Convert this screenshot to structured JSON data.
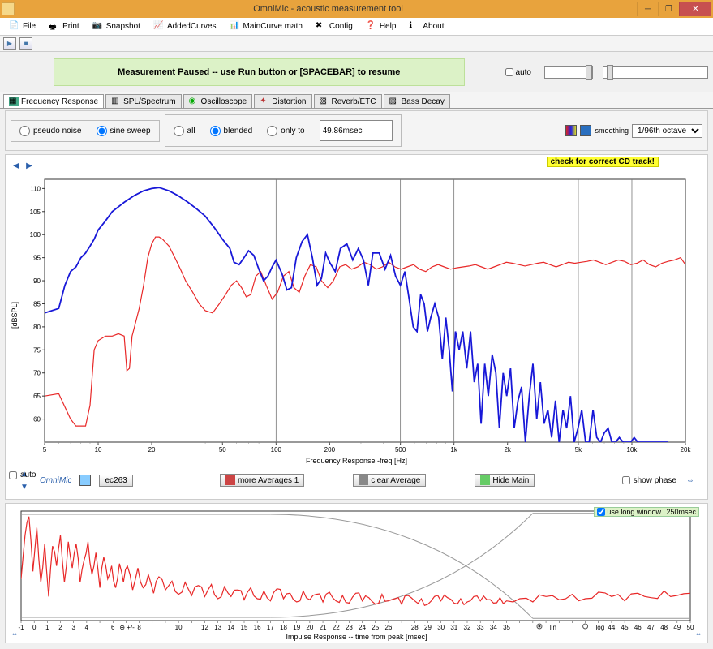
{
  "window": {
    "title": "OmniMic - acoustic measurement tool"
  },
  "menu": {
    "file": "File",
    "print": "Print",
    "snapshot": "Snapshot",
    "addedcurves": "AddedCurves",
    "maincurve": "MainCurve math",
    "config": "Config",
    "help": "Help",
    "about": "About"
  },
  "banner": "Measurement Paused -- use Run button or [SPACEBAR] to resume",
  "auto_label": "auto",
  "tabs": {
    "freq": "Frequency Response",
    "spl": "SPL/Spectrum",
    "osc": "Oscilloscope",
    "dist": "Distortion",
    "reverb": "Reverb/ETC",
    "bass": "Bass Decay"
  },
  "source": {
    "pseudo": "pseudo noise",
    "sweep": "sine sweep"
  },
  "blend": {
    "all": "all",
    "blended": "blended",
    "onlyto": "only to",
    "value": "49.86msec"
  },
  "smoothing_label": "smoothing",
  "smoothing_options": [
    "1/96th octave"
  ],
  "yellow_note": "check for correct CD track!",
  "freq_chart": {
    "ylabel": "[dBSPL]",
    "xlabel": "Frequency Response -freq [Hz]",
    "y_ticks": [
      60,
      65,
      70,
      75,
      80,
      85,
      90,
      95,
      100,
      105,
      110
    ],
    "x_ticks": [
      5,
      10,
      20,
      50,
      100,
      200,
      500,
      "1k",
      "2k",
      "5k",
      "10k",
      "20k"
    ],
    "x_log": [
      5,
      10,
      20,
      50,
      100,
      200,
      500,
      1000,
      2000,
      5000,
      10000,
      20000
    ],
    "grid_verticals": [
      100,
      500,
      1000,
      5000,
      10000
    ],
    "blue_color": "#1818d8",
    "red_color": "#e82828",
    "bg": "#ffffff",
    "grid_color": "#777777",
    "blue": [
      [
        5,
        83
      ],
      [
        6,
        84
      ],
      [
        6.5,
        89
      ],
      [
        7,
        92
      ],
      [
        7.5,
        93
      ],
      [
        8,
        95
      ],
      [
        8.5,
        96
      ],
      [
        9,
        97.5
      ],
      [
        9.5,
        99
      ],
      [
        10,
        101
      ],
      [
        11,
        103
      ],
      [
        12,
        105
      ],
      [
        14,
        107
      ],
      [
        16,
        108.5
      ],
      [
        18,
        109.5
      ],
      [
        20,
        110
      ],
      [
        22,
        110.2
      ],
      [
        25,
        109.5
      ],
      [
        28,
        108.5
      ],
      [
        32,
        107
      ],
      [
        36,
        105.5
      ],
      [
        40,
        104
      ],
      [
        45,
        101.5
      ],
      [
        50,
        99
      ],
      [
        55,
        97
      ],
      [
        58,
        94
      ],
      [
        62,
        93.5
      ],
      [
        66,
        95
      ],
      [
        70,
        96.5
      ],
      [
        75,
        95.5
      ],
      [
        80,
        92.5
      ],
      [
        85,
        90
      ],
      [
        90,
        91
      ],
      [
        95,
        93
      ],
      [
        100,
        94.5
      ],
      [
        108,
        91.5
      ],
      [
        115,
        88
      ],
      [
        122,
        88.5
      ],
      [
        130,
        95
      ],
      [
        140,
        98.5
      ],
      [
        150,
        100
      ],
      [
        160,
        95
      ],
      [
        170,
        89
      ],
      [
        180,
        90.5
      ],
      [
        190,
        96
      ],
      [
        200,
        94
      ],
      [
        215,
        92
      ],
      [
        230,
        97
      ],
      [
        250,
        98
      ],
      [
        270,
        94.5
      ],
      [
        290,
        97
      ],
      [
        310,
        94.5
      ],
      [
        330,
        89
      ],
      [
        350,
        96
      ],
      [
        380,
        96
      ],
      [
        410,
        92.5
      ],
      [
        440,
        95.5
      ],
      [
        470,
        91
      ],
      [
        500,
        89
      ],
      [
        530,
        92
      ],
      [
        560,
        86
      ],
      [
        590,
        80
      ],
      [
        620,
        79
      ],
      [
        650,
        87
      ],
      [
        680,
        85
      ],
      [
        710,
        79
      ],
      [
        740,
        82
      ],
      [
        780,
        85
      ],
      [
        820,
        82
      ],
      [
        860,
        73
      ],
      [
        900,
        82
      ],
      [
        940,
        75
      ],
      [
        980,
        66
      ],
      [
        1020,
        79
      ],
      [
        1070,
        75
      ],
      [
        1120,
        79
      ],
      [
        1180,
        71
      ],
      [
        1240,
        79
      ],
      [
        1300,
        68
      ],
      [
        1360,
        72
      ],
      [
        1420,
        59
      ],
      [
        1490,
        72
      ],
      [
        1560,
        65
      ],
      [
        1640,
        74
      ],
      [
        1720,
        70
      ],
      [
        1800,
        58
      ],
      [
        1890,
        70
      ],
      [
        1980,
        65
      ],
      [
        2080,
        71
      ],
      [
        2180,
        58
      ],
      [
        2290,
        64
      ],
      [
        2400,
        67
      ],
      [
        2520,
        55
      ],
      [
        2650,
        65
      ],
      [
        2780,
        72
      ],
      [
        2920,
        60
      ],
      [
        3060,
        68
      ],
      [
        3210,
        59
      ],
      [
        3370,
        62
      ],
      [
        3540,
        56
      ],
      [
        3720,
        64
      ],
      [
        3900,
        55
      ],
      [
        4100,
        62
      ],
      [
        4300,
        58
      ],
      [
        4520,
        65
      ],
      [
        4740,
        55
      ],
      [
        4980,
        58
      ],
      [
        5230,
        62
      ],
      [
        5490,
        55
      ],
      [
        5760,
        55
      ],
      [
        6050,
        62
      ],
      [
        6350,
        56
      ],
      [
        6670,
        55
      ],
      [
        7000,
        57
      ],
      [
        7350,
        58
      ],
      [
        7720,
        55
      ],
      [
        8100,
        55
      ],
      [
        8500,
        56
      ],
      [
        8930,
        55
      ],
      [
        9380,
        55
      ],
      [
        9850,
        55
      ],
      [
        10300,
        56
      ],
      [
        10800,
        55
      ],
      [
        11400,
        55
      ],
      [
        12000,
        55
      ],
      [
        12600,
        55
      ],
      [
        13200,
        55
      ],
      [
        13900,
        55
      ],
      [
        14600,
        55
      ],
      [
        15300,
        55
      ],
      [
        16000,
        55
      ]
    ],
    "red": [
      [
        5,
        65
      ],
      [
        6,
        65.5
      ],
      [
        7,
        60
      ],
      [
        7.5,
        58.5
      ],
      [
        8,
        58.5
      ],
      [
        8.5,
        58.5
      ],
      [
        9,
        63
      ],
      [
        9.5,
        75
      ],
      [
        10,
        77
      ],
      [
        11,
        78
      ],
      [
        12,
        78
      ],
      [
        13,
        78.5
      ],
      [
        14,
        78
      ],
      [
        14.5,
        70.5
      ],
      [
        15,
        71
      ],
      [
        15.5,
        78
      ],
      [
        16,
        80
      ],
      [
        17,
        84
      ],
      [
        18,
        89
      ],
      [
        19,
        95
      ],
      [
        20,
        98
      ],
      [
        21,
        99.5
      ],
      [
        22,
        99.5
      ],
      [
        23,
        99
      ],
      [
        25,
        97.5
      ],
      [
        27,
        95
      ],
      [
        29,
        92.5
      ],
      [
        31,
        90
      ],
      [
        34,
        87.5
      ],
      [
        37,
        85
      ],
      [
        40,
        83.5
      ],
      [
        44,
        83
      ],
      [
        48,
        85
      ],
      [
        52,
        87
      ],
      [
        56,
        89
      ],
      [
        60,
        90
      ],
      [
        64,
        88.5
      ],
      [
        68,
        86.5
      ],
      [
        72,
        87
      ],
      [
        77,
        91
      ],
      [
        82,
        92
      ],
      [
        88,
        89
      ],
      [
        95,
        86
      ],
      [
        102,
        87.5
      ],
      [
        110,
        91
      ],
      [
        118,
        92
      ],
      [
        126,
        88.5
      ],
      [
        135,
        87.5
      ],
      [
        145,
        91
      ],
      [
        156,
        93.5
      ],
      [
        168,
        93
      ],
      [
        180,
        90
      ],
      [
        195,
        88.5
      ],
      [
        210,
        90
      ],
      [
        228,
        93
      ],
      [
        246,
        93.5
      ],
      [
        266,
        92.5
      ],
      [
        288,
        93
      ],
      [
        312,
        94
      ],
      [
        338,
        93.5
      ],
      [
        366,
        92.5
      ],
      [
        396,
        93
      ],
      [
        430,
        94
      ],
      [
        466,
        93
      ],
      [
        504,
        92.5
      ],
      [
        546,
        93
      ],
      [
        592,
        93.5
      ],
      [
        640,
        92.5
      ],
      [
        694,
        92
      ],
      [
        752,
        93
      ],
      [
        814,
        93.5
      ],
      [
        882,
        93
      ],
      [
        956,
        92.5
      ],
      [
        1036,
        92.8
      ],
      [
        1122,
        93
      ],
      [
        1216,
        93.2
      ],
      [
        1318,
        93.5
      ],
      [
        1428,
        93
      ],
      [
        1548,
        92.5
      ],
      [
        1678,
        93
      ],
      [
        1818,
        93.5
      ],
      [
        1970,
        94
      ],
      [
        2136,
        93.8
      ],
      [
        2314,
        93.5
      ],
      [
        2508,
        93.2
      ],
      [
        2718,
        93.5
      ],
      [
        2946,
        93.8
      ],
      [
        3192,
        94
      ],
      [
        3460,
        93.5
      ],
      [
        3750,
        93
      ],
      [
        4064,
        93.5
      ],
      [
        4404,
        94
      ],
      [
        4774,
        93.8
      ],
      [
        5174,
        94
      ],
      [
        5608,
        94.2
      ],
      [
        6078,
        94.5
      ],
      [
        6588,
        94
      ],
      [
        7140,
        93.5
      ],
      [
        7738,
        94
      ],
      [
        8388,
        94.5
      ],
      [
        9090,
        94.2
      ],
      [
        9852,
        93.5
      ],
      [
        10680,
        93.8
      ],
      [
        11574,
        94.5
      ],
      [
        12546,
        93.5
      ],
      [
        13598,
        93
      ],
      [
        14740,
        93.8
      ],
      [
        15978,
        94.2
      ],
      [
        17318,
        94.5
      ],
      [
        18772,
        95
      ],
      [
        20000,
        93.5
      ]
    ]
  },
  "bottom_controls": {
    "auto": "auto",
    "omnimic": "OmniMic",
    "eq": "ec263",
    "more_avg": "more Averages 1",
    "clear_avg": "clear Average",
    "hide_main": "Hide Main",
    "show_phase": "show phase"
  },
  "impulse": {
    "xlabel": "Impulse Response -- time from peak [msec]",
    "use_long": "use long window",
    "use_long_val": "250msec",
    "x_ticks": [
      -1,
      0,
      1,
      2,
      3,
      4,
      "",
      6,
      "",
      8,
      "",
      "",
      10,
      "",
      12,
      13,
      14,
      15,
      16,
      17,
      18,
      19,
      20,
      21,
      22,
      23,
      24,
      25,
      26,
      "",
      28,
      29,
      30,
      31,
      32,
      33,
      34,
      35,
      "",
      "",
      "",
      "",
      "",
      "",
      "",
      44,
      45,
      46,
      47,
      48,
      49,
      50
    ],
    "color": "#e82828",
    "env_color": "#999999",
    "lin": "lin",
    "log": "log",
    "data": [
      [
        -1,
        0.38
      ],
      [
        -0.7,
        0.78
      ],
      [
        -0.4,
        0.95
      ],
      [
        -0.1,
        0.45
      ],
      [
        0.2,
        0.85
      ],
      [
        0.5,
        0.35
      ],
      [
        0.8,
        0.7
      ],
      [
        1.1,
        0.22
      ],
      [
        1.4,
        0.68
      ],
      [
        1.7,
        0.5
      ],
      [
        2.0,
        0.78
      ],
      [
        2.3,
        0.35
      ],
      [
        2.6,
        0.72
      ],
      [
        2.9,
        0.48
      ],
      [
        3.2,
        0.7
      ],
      [
        3.5,
        0.35
      ],
      [
        3.8,
        0.55
      ],
      [
        4.1,
        0.72
      ],
      [
        4.4,
        0.42
      ],
      [
        4.7,
        0.62
      ],
      [
        5.0,
        0.3
      ],
      [
        5.3,
        0.58
      ],
      [
        5.6,
        0.38
      ],
      [
        5.9,
        0.5
      ],
      [
        6.2,
        0.3
      ],
      [
        6.5,
        0.52
      ],
      [
        6.8,
        0.35
      ],
      [
        7.1,
        0.5
      ],
      [
        7.5,
        0.28
      ],
      [
        7.9,
        0.48
      ],
      [
        8.3,
        0.3
      ],
      [
        8.7,
        0.42
      ],
      [
        9.1,
        0.25
      ],
      [
        9.5,
        0.4
      ],
      [
        10,
        0.28
      ],
      [
        10.5,
        0.36
      ],
      [
        11,
        0.24
      ],
      [
        11.5,
        0.35
      ],
      [
        12,
        0.23
      ],
      [
        12.5,
        0.32
      ],
      [
        13,
        0.22
      ],
      [
        13.5,
        0.33
      ],
      [
        14,
        0.2
      ],
      [
        14.5,
        0.31
      ],
      [
        15,
        0.22
      ],
      [
        15.5,
        0.28
      ],
      [
        16,
        0.19
      ],
      [
        16.5,
        0.3
      ],
      [
        17,
        0.2
      ],
      [
        17.5,
        0.27
      ],
      [
        18,
        0.18
      ],
      [
        18.5,
        0.29
      ],
      [
        19,
        0.2
      ],
      [
        19.5,
        0.25
      ],
      [
        20,
        0.17
      ],
      [
        20.5,
        0.27
      ],
      [
        21,
        0.19
      ],
      [
        21.5,
        0.24
      ],
      [
        22,
        0.17
      ],
      [
        22.5,
        0.26
      ],
      [
        23,
        0.18
      ],
      [
        23.5,
        0.23
      ],
      [
        24,
        0.16
      ],
      [
        24.5,
        0.25
      ],
      [
        25,
        0.18
      ],
      [
        25.5,
        0.21
      ],
      [
        26,
        0.15
      ],
      [
        26.5,
        0.24
      ],
      [
        27,
        0.18
      ],
      [
        27.5,
        0.2
      ],
      [
        28,
        0.15
      ],
      [
        28.5,
        0.23
      ],
      [
        29,
        0.18
      ],
      [
        29.5,
        0.2
      ],
      [
        30,
        0.15
      ],
      [
        30.5,
        0.22
      ],
      [
        31,
        0.18
      ],
      [
        31.5,
        0.21
      ],
      [
        32,
        0.16
      ],
      [
        32.5,
        0.2
      ],
      [
        33,
        0.17
      ],
      [
        33.5,
        0.22
      ],
      [
        34,
        0.18
      ],
      [
        34.5,
        0.19
      ],
      [
        35,
        0.16
      ],
      [
        35.5,
        0.21
      ],
      [
        36,
        0.18
      ],
      [
        37,
        0.2
      ],
      [
        38,
        0.17
      ],
      [
        39,
        0.22
      ],
      [
        40,
        0.19
      ],
      [
        41,
        0.24
      ],
      [
        42,
        0.2
      ],
      [
        43,
        0.26
      ],
      [
        44,
        0.22
      ],
      [
        45,
        0.18
      ],
      [
        46,
        0.25
      ],
      [
        47,
        0.21
      ],
      [
        48,
        0.27
      ],
      [
        49,
        0.23
      ],
      [
        50,
        0.25
      ]
    ]
  }
}
